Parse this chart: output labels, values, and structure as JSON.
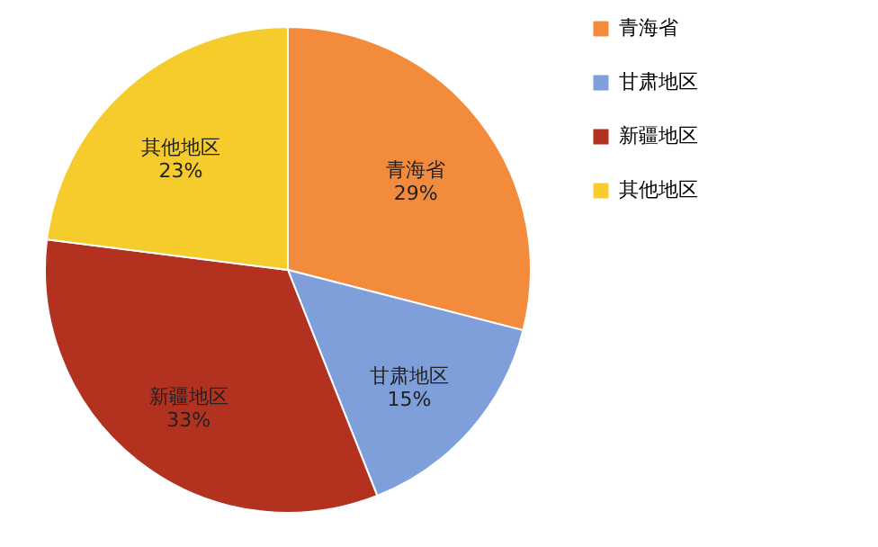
{
  "chart_data": {
    "type": "pie",
    "categories": [
      "青海省",
      "甘肃地区",
      "新疆地区",
      "其他地区"
    ],
    "values": [
      29,
      15,
      33,
      23
    ],
    "colors": [
      "#f28c3c",
      "#7f9fdb",
      "#b3321f",
      "#f5cc2c"
    ],
    "value_labels": [
      "29%",
      "15%",
      "33%",
      "23%"
    ],
    "legend": "right"
  }
}
